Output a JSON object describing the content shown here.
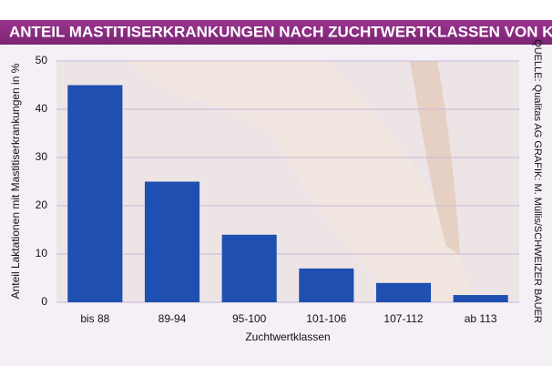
{
  "chart_data": {
    "type": "bar",
    "title": "ANTEIL MASTITISERKRANKUNGEN NACH ZUCHTWERTKLASSEN VON KÜHEN",
    "y_label": "Anteil Laktationen mit Mastitiserkrankungen in %",
    "x_label": "Zuchtwertklassen",
    "source": "QUELLE: Qualitas AG GRAFIK: M. Müllis/SCHWEIZER BAUER",
    "categories": [
      "bis 88",
      "89-94",
      "95-100",
      "101-106",
      "107-112",
      "ab 113"
    ],
    "values": [
      45,
      25,
      14,
      7,
      4,
      1.5
    ],
    "color": "#1f4fb0",
    "ylim": [
      0,
      50
    ],
    "yticks": [
      0,
      10,
      20,
      30,
      40,
      50
    ],
    "grid": true
  }
}
